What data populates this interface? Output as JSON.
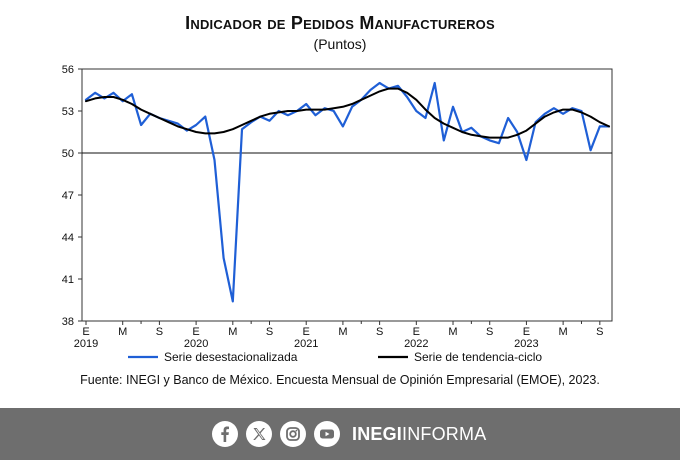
{
  "chart_data": {
    "type": "line",
    "title": "Indicador de Pedidos Manufactureros",
    "subtitle": "(Puntos)",
    "xlabel": "",
    "ylabel": "",
    "ylim": [
      38,
      56
    ],
    "yticks": [
      38,
      41,
      44,
      47,
      50,
      53,
      56
    ],
    "reference_line": 50,
    "x": [
      "2019-E",
      "2019-F",
      "2019-M",
      "2019-A",
      "2019-M2",
      "2019-J",
      "2019-J2",
      "2019-A2",
      "2019-S",
      "2019-O",
      "2019-N",
      "2019-D",
      "2020-E",
      "2020-F",
      "2020-M",
      "2020-A",
      "2020-M2",
      "2020-J",
      "2020-J2",
      "2020-A2",
      "2020-S",
      "2020-O",
      "2020-N",
      "2020-D",
      "2021-E",
      "2021-F",
      "2021-M",
      "2021-A",
      "2021-M2",
      "2021-J",
      "2021-J2",
      "2021-A2",
      "2021-S",
      "2021-O",
      "2021-N",
      "2021-D",
      "2022-E",
      "2022-F",
      "2022-M",
      "2022-A",
      "2022-M2",
      "2022-J",
      "2022-J2",
      "2022-A2",
      "2022-S",
      "2022-O",
      "2022-N",
      "2022-D",
      "2023-E",
      "2023-F",
      "2023-M",
      "2023-A",
      "2023-M2",
      "2023-J",
      "2023-J2",
      "2023-A2",
      "2023-S",
      "2023-O"
    ],
    "x_ticks": [
      {
        "index": 0,
        "label": "E",
        "year": "2019"
      },
      {
        "index": 4,
        "label": "M"
      },
      {
        "index": 8,
        "label": "S"
      },
      {
        "index": 12,
        "label": "E",
        "year": "2020"
      },
      {
        "index": 16,
        "label": "M"
      },
      {
        "index": 20,
        "label": "S"
      },
      {
        "index": 24,
        "label": "E",
        "year": "2021"
      },
      {
        "index": 28,
        "label": "M"
      },
      {
        "index": 32,
        "label": "S"
      },
      {
        "index": 36,
        "label": "E",
        "year": "2022"
      },
      {
        "index": 40,
        "label": "M"
      },
      {
        "index": 44,
        "label": "S"
      },
      {
        "index": 48,
        "label": "E",
        "year": "2023"
      },
      {
        "index": 52,
        "label": "M"
      },
      {
        "index": 56,
        "label": "S"
      }
    ],
    "series": [
      {
        "name": "Serie desestacionalizada",
        "color": "#1f5fd6",
        "values": [
          53.8,
          54.3,
          53.9,
          54.3,
          53.7,
          54.2,
          52.0,
          52.8,
          52.5,
          52.3,
          52.1,
          51.6,
          52.0,
          52.6,
          49.5,
          42.5,
          39.4,
          51.7,
          52.2,
          52.6,
          52.3,
          53.0,
          52.7,
          53.0,
          53.5,
          52.7,
          53.2,
          53.0,
          51.9,
          53.3,
          53.8,
          54.5,
          55.0,
          54.6,
          54.8,
          54.0,
          53.0,
          52.5,
          55.0,
          50.9,
          53.3,
          51.5,
          51.8,
          51.2,
          50.9,
          50.7,
          52.5,
          51.5,
          49.5,
          52.2,
          52.8,
          53.2,
          52.8,
          53.2,
          53.0,
          50.2,
          51.9,
          51.9
        ]
      },
      {
        "name": "Serie de tendencia-ciclo",
        "color": "#000000",
        "values": [
          53.7,
          53.9,
          54.0,
          54.0,
          53.8,
          53.5,
          53.1,
          52.8,
          52.5,
          52.2,
          51.9,
          51.7,
          51.5,
          51.4,
          51.4,
          51.5,
          51.7,
          52.0,
          52.3,
          52.6,
          52.8,
          52.9,
          53.0,
          53.0,
          53.1,
          53.1,
          53.1,
          53.2,
          53.3,
          53.5,
          53.8,
          54.1,
          54.4,
          54.6,
          54.6,
          54.3,
          53.8,
          53.1,
          52.5,
          52.1,
          51.8,
          51.5,
          51.3,
          51.2,
          51.1,
          51.1,
          51.1,
          51.3,
          51.6,
          52.1,
          52.6,
          52.9,
          53.1,
          53.1,
          52.9,
          52.6,
          52.2,
          51.9
        ]
      }
    ],
    "legend": [
      "Serie desestacionalizada",
      "Serie de tendencia-ciclo"
    ],
    "legend_position": "bottom",
    "source_note": "Fuente: INEGI y Banco de México. Encuesta Mensual de Opinión Empresarial (EMOE), 2023."
  },
  "footer": {
    "brand_bold": "INEGI",
    "brand_light": "INFORMA",
    "bg_color": "#6e6e6e",
    "social": [
      "facebook-icon",
      "x-icon",
      "instagram-icon",
      "youtube-icon"
    ]
  }
}
